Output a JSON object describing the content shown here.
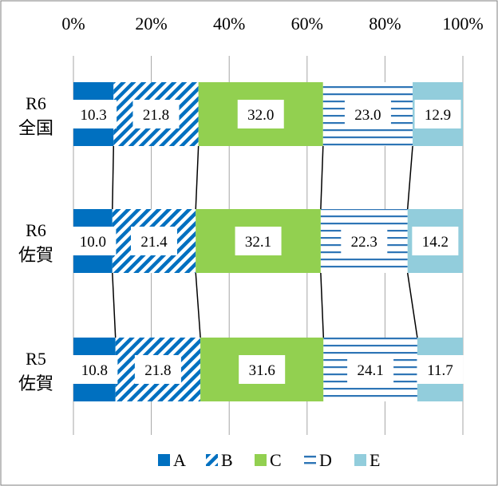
{
  "chart_data": {
    "type": "bar",
    "stacked": "percent",
    "orientation": "horizontal",
    "categories": [
      [
        "R6",
        "全国"
      ],
      [
        "R6",
        "佐賀"
      ],
      [
        "R5",
        "佐賀"
      ]
    ],
    "series": [
      {
        "name": "A",
        "values": [
          10.3,
          10.0,
          10.8
        ],
        "color": "#0070c0",
        "pattern": "solid"
      },
      {
        "name": "B",
        "values": [
          21.8,
          21.4,
          21.8
        ],
        "color": "#0070c0",
        "pattern": "diagonal"
      },
      {
        "name": "C",
        "values": [
          32.0,
          32.1,
          31.6
        ],
        "color": "#92d050",
        "pattern": "solid"
      },
      {
        "name": "D",
        "values": [
          23.0,
          22.3,
          24.1
        ],
        "color": "#2e75b6",
        "pattern": "horizontal-lines"
      },
      {
        "name": "E",
        "values": [
          12.9,
          14.2,
          11.7
        ],
        "color": "#92cddc",
        "pattern": "solid"
      }
    ],
    "data_labels": [
      [
        "10.3",
        "21.8",
        "32.0",
        "23.0",
        "12.9"
      ],
      [
        "10.0",
        "21.4",
        "32.1",
        "22.3",
        "14.2"
      ],
      [
        "10.8",
        "21.8",
        "31.6",
        "24.1",
        "11.7"
      ]
    ],
    "xlim": [
      0,
      100
    ],
    "x_ticks": [
      "0%",
      "20%",
      "40%",
      "60%",
      "80%",
      "100%"
    ],
    "x_tick_values": [
      0,
      20,
      40,
      60,
      80,
      100
    ],
    "x_axis_position": "top",
    "grid": true,
    "series_lines": true,
    "legend_position": "bottom"
  }
}
